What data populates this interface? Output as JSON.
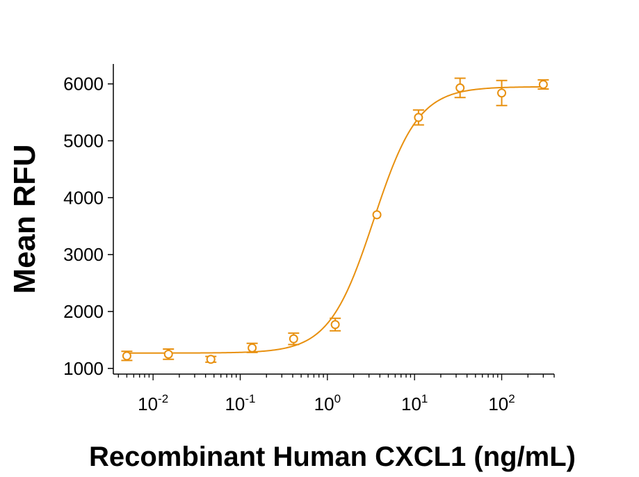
{
  "chart_data": {
    "type": "scatter",
    "xlabel": "Recombinant Human CXCL1 (ng/mL)",
    "ylabel": "Mean RFU",
    "x_scale": "log",
    "xlim": [
      0.0035,
      400
    ],
    "ylim": [
      900,
      6350
    ],
    "y_ticks": [
      1000,
      2000,
      3000,
      4000,
      5000,
      6000
    ],
    "x_ticks": [
      {
        "value": 0.01,
        "base": "10",
        "exp": "-2"
      },
      {
        "value": 0.1,
        "base": "10",
        "exp": "-1"
      },
      {
        "value": 1,
        "base": "10",
        "exp": "0"
      },
      {
        "value": 10,
        "base": "10",
        "exp": "1"
      },
      {
        "value": 100,
        "base": "10",
        "exp": "2"
      }
    ],
    "grid": false,
    "color": "#E8900F",
    "series": [
      {
        "points": [
          {
            "x": 0.005,
            "y": 1220,
            "err": 80
          },
          {
            "x": 0.015,
            "y": 1250,
            "err": 90
          },
          {
            "x": 0.046,
            "y": 1160,
            "err": 50
          },
          {
            "x": 0.137,
            "y": 1360,
            "err": 80
          },
          {
            "x": 0.41,
            "y": 1520,
            "err": 100
          },
          {
            "x": 1.23,
            "y": 1770,
            "err": 110
          },
          {
            "x": 3.7,
            "y": 3700,
            "err": 0
          },
          {
            "x": 11.1,
            "y": 5410,
            "err": 130
          },
          {
            "x": 33.3,
            "y": 5930,
            "err": 170
          },
          {
            "x": 100,
            "y": 5840,
            "err": 220
          },
          {
            "x": 300,
            "y": 5990,
            "err": 80
          }
        ],
        "fit": {
          "model": "4PL",
          "bottom": 1270,
          "top": 5950,
          "ec50": 3.4,
          "hill": 1.7
        }
      }
    ]
  }
}
